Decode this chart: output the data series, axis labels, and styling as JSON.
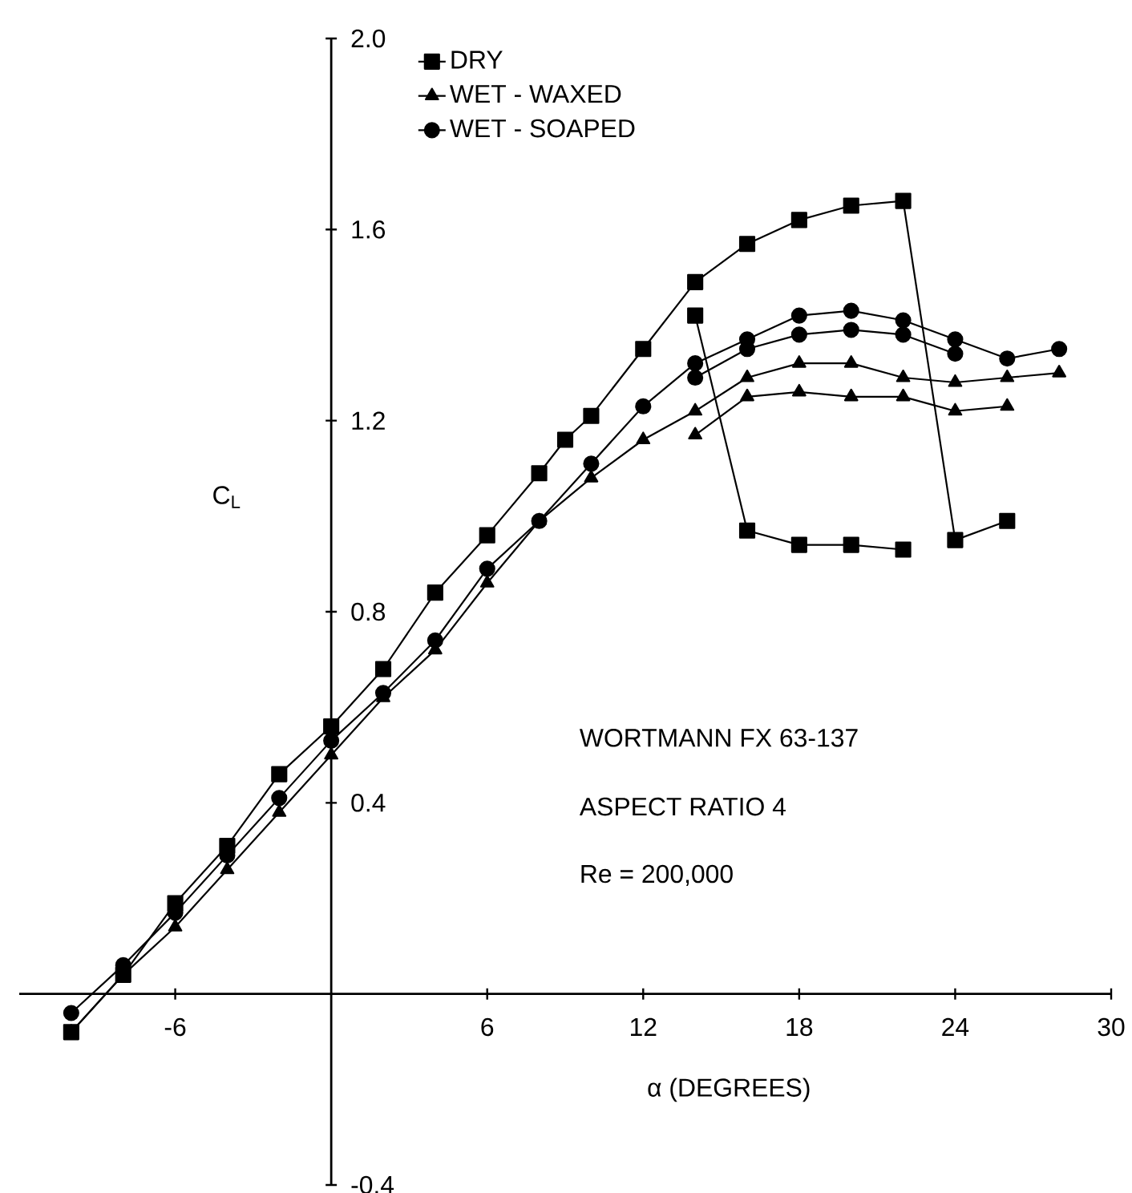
{
  "chart_data": {
    "type": "line",
    "xlabel": "α (DEGREES)",
    "ylabel": "C$_{L}$",
    "xlim": [
      -12,
      30
    ],
    "ylim": [
      -0.4,
      2.0
    ],
    "xticks": [
      -6,
      6,
      12,
      18,
      24,
      30
    ],
    "yticks": [
      -0.4,
      0.4,
      0.8,
      1.2,
      1.6,
      {
        "value": 2.0,
        "label": "2.0"
      }
    ],
    "legend": "top left",
    "line_style": "solid",
    "annotations": [
      "WORTMANN FX 63-137",
      "ASPECT RATIO 4",
      "Re  =  200,000"
    ],
    "series": [
      {
        "name": "DRY",
        "color": "#000000",
        "marker": "square",
        "x": [
          -10,
          -8,
          -6,
          -4,
          -2,
          0,
          2,
          4,
          6,
          8,
          9,
          10,
          12,
          14,
          16,
          18,
          20,
          22,
          24,
          26
        ],
        "values": [
          -0.08,
          0.04,
          0.19,
          0.31,
          0.46,
          0.56,
          0.68,
          0.84,
          0.96,
          1.09,
          1.16,
          1.21,
          1.35,
          1.49,
          1.57,
          1.62,
          1.65,
          1.66,
          0.95,
          0.99
        ]
      },
      {
        "name": "WET - WAXED",
        "color": "#000000",
        "marker": "triangle",
        "x": [
          -10,
          -8,
          -6,
          -4,
          -2,
          0,
          2,
          4,
          6,
          8,
          10,
          12,
          14,
          16,
          18,
          20,
          22,
          24,
          26,
          28
        ],
        "values": [
          -0.08,
          0.04,
          0.14,
          0.26,
          0.38,
          0.5,
          0.62,
          0.72,
          0.86,
          0.99,
          1.08,
          1.16,
          1.22,
          1.29,
          1.32,
          1.32,
          1.29,
          1.28,
          1.29,
          1.3
        ]
      },
      {
        "name": "WET - SOAPED",
        "color": "#000000",
        "marker": "circle",
        "x": [
          -10,
          -8,
          -6,
          -4,
          -2,
          0,
          2,
          4,
          6,
          8,
          10,
          12,
          14,
          16,
          18,
          20,
          22,
          24,
          26,
          28
        ],
        "values": [
          -0.04,
          0.06,
          0.17,
          0.29,
          0.41,
          0.53,
          0.63,
          0.74,
          0.89,
          0.99,
          1.11,
          1.23,
          1.32,
          1.37,
          1.42,
          1.43,
          1.41,
          1.37,
          1.33,
          1.35
        ]
      },
      {
        "color": "#000000",
        "marker": "square",
        "x": [
          22,
          20,
          18,
          16,
          14
        ],
        "values": [
          0.93,
          0.94,
          0.94,
          0.97,
          1.42
        ]
      },
      {
        "color": "#000000",
        "marker": "triangle",
        "x": [
          26,
          24,
          22,
          20,
          18,
          16,
          14
        ],
        "values": [
          1.23,
          1.22,
          1.25,
          1.25,
          1.26,
          1.25,
          1.17
        ]
      },
      {
        "color": "#000000",
        "marker": "circle",
        "x": [
          24,
          22,
          20,
          18,
          16,
          14
        ],
        "values": [
          1.34,
          1.38,
          1.39,
          1.38,
          1.35,
          1.29
        ]
      }
    ]
  }
}
